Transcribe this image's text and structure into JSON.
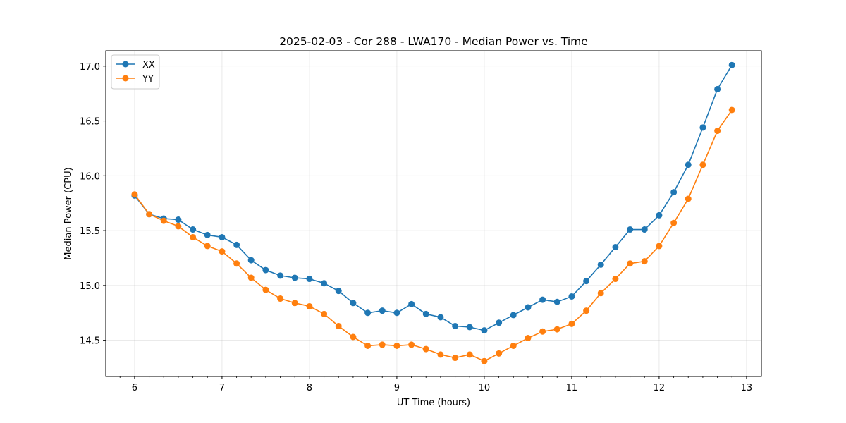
{
  "chart_data": {
    "type": "line",
    "title": "2025-02-03 - Cor 288 - LWA170 - Median Power vs. Time",
    "xlabel": "UT Time (hours)",
    "ylabel": "Median Power (CPU)",
    "xlim": [
      5.67,
      13.17
    ],
    "ylim": [
      14.17,
      17.14
    ],
    "xticks": [
      6,
      7,
      8,
      9,
      10,
      11,
      12,
      13
    ],
    "yticks": [
      14.5,
      15.0,
      15.5,
      16.0,
      16.5,
      17.0
    ],
    "ytick_labels": [
      "14.5",
      "15.0",
      "15.5",
      "16.0",
      "16.5",
      "17.0"
    ],
    "grid": true,
    "legend_position": "top-left",
    "x": [
      6.0,
      6.167,
      6.333,
      6.5,
      6.667,
      6.833,
      7.0,
      7.167,
      7.333,
      7.5,
      7.667,
      7.833,
      8.0,
      8.167,
      8.333,
      8.5,
      8.667,
      8.833,
      9.0,
      9.167,
      9.333,
      9.5,
      9.667,
      9.833,
      10.0,
      10.167,
      10.333,
      10.5,
      10.667,
      10.833,
      11.0,
      11.167,
      11.333,
      11.5,
      11.667,
      11.833,
      12.0,
      12.167,
      12.333,
      12.5,
      12.667,
      12.833
    ],
    "series": [
      {
        "name": "XX",
        "color": "#1f77b4",
        "values": [
          15.82,
          15.65,
          15.61,
          15.6,
          15.51,
          15.46,
          15.44,
          15.37,
          15.23,
          15.14,
          15.09,
          15.07,
          15.06,
          15.02,
          14.95,
          14.84,
          14.75,
          14.77,
          14.75,
          14.83,
          14.74,
          14.71,
          14.63,
          14.62,
          14.59,
          14.66,
          14.73,
          14.8,
          14.87,
          14.85,
          14.9,
          15.04,
          15.19,
          15.35,
          15.51,
          15.51,
          15.64,
          15.85,
          16.1,
          16.44,
          16.79,
          17.01
        ]
      },
      {
        "name": "YY",
        "color": "#ff7f0e",
        "values": [
          15.83,
          15.65,
          15.59,
          15.54,
          15.44,
          15.36,
          15.31,
          15.2,
          15.07,
          14.96,
          14.88,
          14.84,
          14.81,
          14.74,
          14.63,
          14.53,
          14.45,
          14.46,
          14.45,
          14.46,
          14.42,
          14.37,
          14.34,
          14.37,
          14.31,
          14.38,
          14.45,
          14.52,
          14.58,
          14.6,
          14.65,
          14.77,
          14.93,
          15.06,
          15.2,
          15.22,
          15.36,
          15.57,
          15.79,
          16.1,
          16.41,
          16.6
        ]
      }
    ]
  }
}
